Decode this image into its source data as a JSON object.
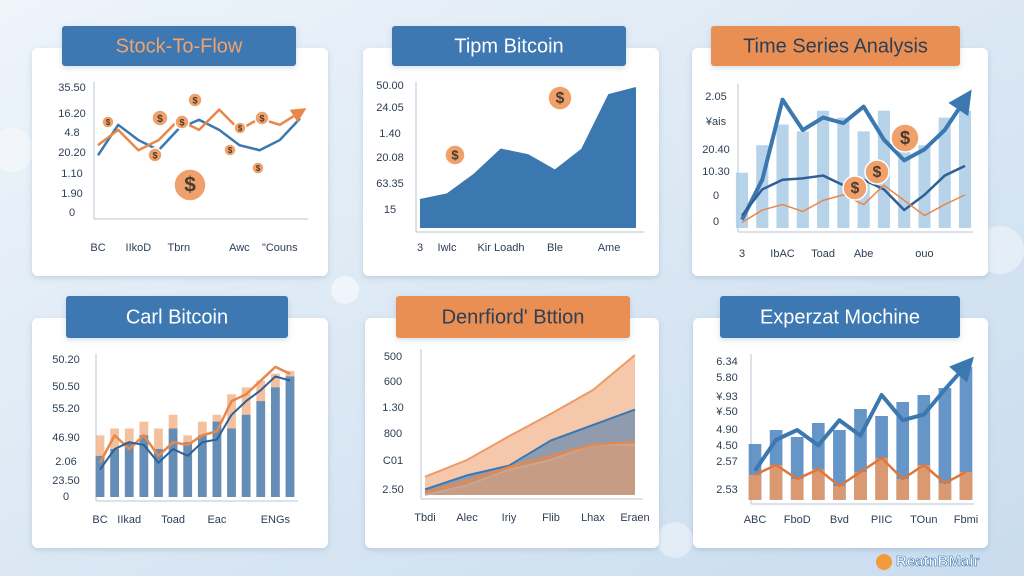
{
  "coin_label": "$",
  "brand": "ReatnBMair",
  "chart_data": [
    {
      "type": "line",
      "title": "Stock-To-Flow",
      "title_fill": "#3d78b2",
      "title_color": "#f0a36a",
      "y_labels": [
        "35.50",
        "16.20",
        "4.8",
        "20.20",
        "1.10",
        "1.90",
        "0"
      ],
      "categories": [
        "BC",
        null,
        "IIkoD",
        null,
        "Tbrn",
        null,
        null,
        "Awc",
        null,
        "\"Couns",
        null
      ],
      "ylim": [
        0,
        100
      ],
      "series": [
        {
          "color": "#3c78b0",
          "values": [
            47,
            71,
            59,
            51,
            68,
            75,
            67,
            55,
            51,
            59,
            76
          ]
        },
        {
          "color": "#e8874a",
          "values": [
            55,
            67,
            51,
            59,
            75,
            67,
            83,
            67,
            76,
            71,
            81
          ],
          "arrow": true
        }
      ]
    },
    {
      "type": "area",
      "title": "Tipm Bitcoin",
      "title_fill": "#3d78b2",
      "title_color": "#ffffff",
      "y_labels": [
        "50.00",
        "24.05",
        "1.40",
        "20.08",
        "63.35",
        "15"
      ],
      "categories": [
        "3",
        "Iwlc",
        null,
        "Kir Loadh",
        null,
        "Ble",
        null,
        "Ame",
        null
      ],
      "ylim": [
        0,
        100
      ],
      "series": [
        {
          "color": "#3c78b0",
          "values": [
            20,
            24,
            38,
            56,
            52,
            41,
            56,
            95,
            100
          ]
        }
      ]
    },
    {
      "type": "combo",
      "title": "Time Series Analysis",
      "title_fill": "#ea8f52",
      "title_color": "#2d3e55",
      "y_labels": [
        "2.05",
        "¥ais",
        "20.40",
        "10.30",
        "0",
        "0"
      ],
      "categories": [
        "3",
        null,
        "IbAC",
        null,
        "Toad",
        null,
        "Abe",
        null,
        null,
        "ouo",
        null,
        null
      ],
      "ylim": [
        0,
        100
      ],
      "series": [
        {
          "kind": "bar",
          "color": "#a9cbe6",
          "values": [
            40,
            60,
            75,
            70,
            85,
            80,
            70,
            85,
            75,
            60,
            80,
            85
          ]
        },
        {
          "kind": "line",
          "color": "#3c78b0",
          "width": 4,
          "values": [
            6,
            35,
            93,
            71,
            80,
            76,
            88,
            64,
            49,
            57,
            71,
            93
          ],
          "arrow": true
        },
        {
          "kind": "line",
          "color": "#2f5f95",
          "width": 2.5,
          "values": [
            9,
            28,
            35,
            36,
            38,
            31,
            35,
            28,
            13,
            24,
            38,
            45
          ]
        },
        {
          "kind": "line",
          "color": "#e8874a",
          "width": 1.5,
          "values": [
            4,
            13,
            17,
            12,
            20,
            24,
            17,
            31,
            20,
            9,
            17,
            24
          ]
        }
      ]
    },
    {
      "type": "combo",
      "title": "Carl Bitcoin",
      "title_fill": "#3d78b2",
      "title_color": "#ffffff",
      "y_labels": [
        "50.20",
        "50.50",
        "55.20",
        "46.90",
        "2.06",
        "23.50",
        "0"
      ],
      "categories": [
        "BC",
        null,
        "IIkad",
        null,
        null,
        "Toad",
        null,
        null,
        "Eac",
        null,
        null,
        null,
        "ENGs",
        null
      ],
      "ylim": [
        0,
        100
      ],
      "series": [
        {
          "kind": "bar",
          "color": "#f2b58c",
          "values": [
            45,
            50,
            50,
            55,
            50,
            60,
            45,
            55,
            60,
            75,
            80,
            85,
            90,
            92
          ]
        },
        {
          "kind": "bar",
          "color": "#4a84bd",
          "values": [
            30,
            35,
            40,
            45,
            35,
            50,
            40,
            45,
            55,
            50,
            60,
            70,
            80,
            88
          ]
        },
        {
          "kind": "line",
          "color": "#e8874a",
          "width": 2.5,
          "values": [
            25,
            45,
            35,
            45,
            30,
            40,
            38,
            45,
            48,
            70,
            75,
            85,
            95,
            90
          ]
        },
        {
          "kind": "line",
          "color": "#2f5f95",
          "width": 2,
          "values": [
            20,
            35,
            40,
            38,
            25,
            35,
            30,
            40,
            42,
            60,
            70,
            78,
            88,
            85
          ]
        }
      ]
    },
    {
      "type": "area",
      "title": "Denrfiord' Bttion",
      "title_fill": "#ea8f52",
      "title_color": "#2d3e55",
      "y_labels": [
        "500",
        "600",
        "1.30",
        "800",
        "C01",
        "2.50"
      ],
      "categories": [
        "Tbdi",
        "Alec",
        "Iriy",
        "Flib",
        "Lhax",
        "Eraen"
      ],
      "ylim": [
        0,
        100
      ],
      "series": [
        {
          "color": "#ee9a66",
          "values": [
            13,
            25,
            42,
            58,
            75,
            100
          ]
        },
        {
          "color": "#3c78b0",
          "values": [
            4,
            14,
            21,
            39,
            50,
            61
          ]
        },
        {
          "color": "#a9cbe6",
          "values": [
            0,
            7,
            18,
            25,
            36,
            36
          ]
        },
        {
          "color": "#e8874a",
          "values": [
            2,
            10,
            20,
            28,
            36,
            38
          ]
        }
      ]
    },
    {
      "type": "combo",
      "title": "Experzat Mochine",
      "title_fill": "#3d78b2",
      "title_color": "#ffffff",
      "y_labels": [
        "6.34",
        "5.80",
        "¥.93",
        "¥.50",
        "4.90",
        "4.50",
        "2.57",
        "2.53"
      ],
      "categories": [
        "ABC",
        null,
        "FboD",
        null,
        "Bvd",
        null,
        "PIIC",
        null,
        "TOun",
        null,
        "Fbmi"
      ],
      "ylim": [
        0,
        100
      ],
      "series": [
        {
          "kind": "bar",
          "color": "#4a84bd",
          "values": [
            40,
            50,
            45,
            55,
            50,
            65,
            60,
            70,
            75,
            80,
            95
          ]
        },
        {
          "kind": "line",
          "color": "#3c78b0",
          "width": 4,
          "values": [
            21,
            43,
            50,
            39,
            57,
            46,
            75,
            57,
            61,
            79,
            96
          ],
          "arrow": true
        },
        {
          "kind": "bar",
          "color": "#ef9a62",
          "values": [
            18,
            25,
            15,
            22,
            10,
            20,
            30,
            15,
            25,
            12,
            20
          ]
        },
        {
          "kind": "line",
          "color": "#e0763a",
          "width": 2.5,
          "values": [
            18,
            25,
            15,
            22,
            10,
            20,
            30,
            15,
            25,
            12,
            20
          ]
        }
      ]
    }
  ]
}
